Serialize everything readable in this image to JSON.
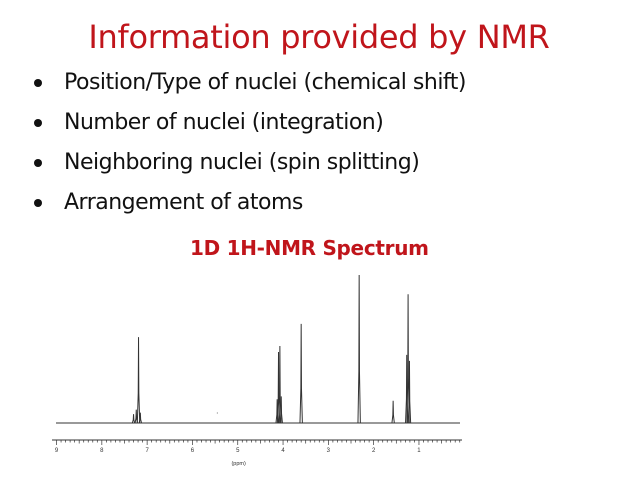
{
  "slide": {
    "title": "Information provided by NMR",
    "bullets": [
      "Position/Type of nuclei (chemical shift)",
      "Number of nuclei (integration)",
      "Neighboring nuclei (spin splitting)",
      "Arrangement of atoms"
    ],
    "spectrum_title": "1D 1H-NMR Spectrum",
    "axis_unit_label": "(ppm)",
    "axis_ticks": [
      "9",
      "8",
      "7",
      "6",
      "5",
      "4",
      "3",
      "2",
      "1"
    ],
    "colors": {
      "title": "#c0151b",
      "text": "#111111",
      "spectrum": "#333333"
    }
  },
  "chart_data": {
    "type": "line",
    "title": "1D 1H-NMR Spectrum",
    "xlabel": "(ppm)",
    "xlim": [
      9.1,
      0.05
    ],
    "x_reversed": true,
    "x_ticks": [
      9,
      8,
      7,
      6,
      5,
      4,
      3,
      2,
      1
    ],
    "ylim": [
      0,
      1.0
    ],
    "grid": false,
    "peaks": [
      {
        "ppm": 7.3,
        "height": 0.06
      },
      {
        "ppm": 7.24,
        "height": 0.09
      },
      {
        "ppm": 7.19,
        "height": 0.58
      },
      {
        "ppm": 7.15,
        "height": 0.07
      },
      {
        "ppm": 4.13,
        "height": 0.16
      },
      {
        "ppm": 4.1,
        "height": 0.48
      },
      {
        "ppm": 4.07,
        "height": 0.52
      },
      {
        "ppm": 4.04,
        "height": 0.18
      },
      {
        "ppm": 3.6,
        "height": 0.67
      },
      {
        "ppm": 2.32,
        "height": 1.0
      },
      {
        "ppm": 1.57,
        "height": 0.15
      },
      {
        "ppm": 1.27,
        "height": 0.46
      },
      {
        "ppm": 1.24,
        "height": 0.87
      },
      {
        "ppm": 1.21,
        "height": 0.42
      }
    ]
  }
}
